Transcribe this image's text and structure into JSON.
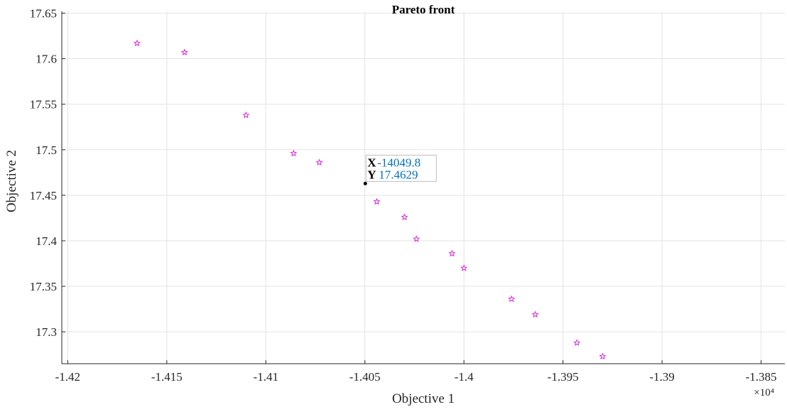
{
  "chart_data": {
    "type": "scatter",
    "title": "Pareto front",
    "xlabel": "Objective 1",
    "ylabel": "Objective 2",
    "x_multiplier_label": "×10⁴",
    "xlim": [
      -1.4203,
      -1.3838
    ],
    "ylim": [
      17.265,
      17.652
    ],
    "xticks": [
      -1.42,
      -1.415,
      -1.41,
      -1.405,
      -1.4,
      -1.395,
      -1.39,
      -1.385
    ],
    "xtick_labels": [
      "-1.42",
      "-1.415",
      "-1.41",
      "-1.405",
      "-1.4",
      "-1.395",
      "-1.39",
      "-1.385"
    ],
    "yticks": [
      17.3,
      17.35,
      17.4,
      17.45,
      17.5,
      17.55,
      17.6,
      17.65
    ],
    "ytick_labels": [
      "17.3",
      "17.35",
      "17.4",
      "17.45",
      "17.5",
      "17.55",
      "17.6",
      "17.65"
    ],
    "grid": true,
    "marker": "star",
    "marker_color": "#d62bd6",
    "series": [
      {
        "x": [
          -1.4165,
          -1.4141,
          -1.411,
          -1.4086,
          -1.4073,
          -1.4044,
          -1.403,
          -1.4024,
          -1.4006,
          -1.4,
          -1.3976,
          -1.3964,
          -1.3943,
          -1.393
        ],
        "y": [
          17.617,
          17.607,
          17.538,
          17.496,
          17.486,
          17.443,
          17.426,
          17.402,
          17.386,
          17.37,
          17.336,
          17.319,
          17.288,
          17.273
        ]
      }
    ],
    "datatip": {
      "x": -1.40498,
      "y": 17.4629,
      "x_label": "X",
      "y_label": "Y",
      "x_text": "-14049.8",
      "y_text": "17.4629"
    }
  }
}
